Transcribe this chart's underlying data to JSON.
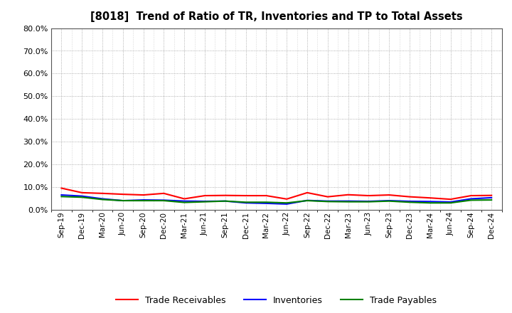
{
  "title": "[8018]  Trend of Ratio of TR, Inventories and TP to Total Assets",
  "x_labels": [
    "Sep-19",
    "Dec-19",
    "Mar-20",
    "Jun-20",
    "Sep-20",
    "Dec-20",
    "Mar-21",
    "Jun-21",
    "Sep-21",
    "Dec-21",
    "Mar-22",
    "Jun-22",
    "Sep-22",
    "Dec-22",
    "Mar-23",
    "Jun-23",
    "Sep-23",
    "Dec-23",
    "Mar-24",
    "Jun-24",
    "Sep-24",
    "Dec-24"
  ],
  "trade_receivables": [
    0.095,
    0.075,
    0.072,
    0.068,
    0.065,
    0.072,
    0.048,
    0.062,
    0.063,
    0.062,
    0.062,
    0.047,
    0.075,
    0.057,
    0.066,
    0.062,
    0.065,
    0.057,
    0.052,
    0.046,
    0.062,
    0.063
  ],
  "inventories": [
    0.065,
    0.06,
    0.048,
    0.04,
    0.043,
    0.042,
    0.038,
    0.037,
    0.038,
    0.03,
    0.028,
    0.025,
    0.041,
    0.038,
    0.038,
    0.037,
    0.04,
    0.037,
    0.036,
    0.034,
    0.048,
    0.053
  ],
  "trade_payables": [
    0.058,
    0.055,
    0.045,
    0.04,
    0.04,
    0.04,
    0.032,
    0.035,
    0.038,
    0.033,
    0.033,
    0.03,
    0.04,
    0.036,
    0.035,
    0.035,
    0.038,
    0.033,
    0.03,
    0.03,
    0.042,
    0.043
  ],
  "ylim": [
    0.0,
    0.8
  ],
  "yticks": [
    0.0,
    0.1,
    0.2,
    0.3,
    0.4,
    0.5,
    0.6,
    0.7,
    0.8
  ],
  "line_colors": {
    "trade_receivables": "#FF0000",
    "inventories": "#0000FF",
    "trade_payables": "#008000"
  },
  "legend_labels": [
    "Trade Receivables",
    "Inventories",
    "Trade Payables"
  ],
  "background_color": "#FFFFFF",
  "grid_color": "#999999"
}
